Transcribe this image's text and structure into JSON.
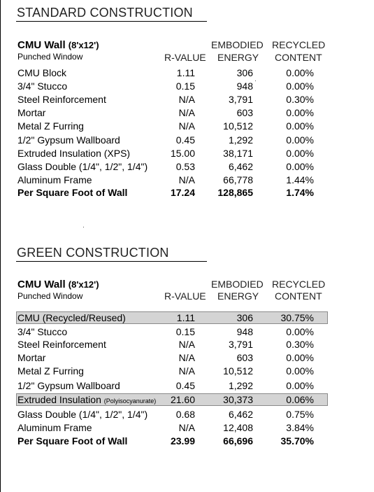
{
  "headers": {
    "r_value": "R-VALUE",
    "embodied_1": "EMBODIED",
    "embodied_2": "ENERGY",
    "recycled_1": "RECYCLED",
    "recycled_2": "CONTENT"
  },
  "standard": {
    "title": "STANDARD CONSTRUCTION",
    "wall_title": "CMU Wall",
    "wall_dims": "(8'x12')",
    "subtitle": "Punched Window",
    "rows": [
      {
        "name": "CMU Block",
        "r": "1.11",
        "ee": "306",
        "rc": "0.00%"
      },
      {
        "name": "3/4\" Stucco",
        "r": "0.15",
        "ee": "948",
        "rc": "0.00%"
      },
      {
        "name": "Steel Reinforcement",
        "r": "N/A",
        "ee": "3,791",
        "rc": "0.30%"
      },
      {
        "name": "Mortar",
        "r": "N/A",
        "ee": "603",
        "rc": "0.00%"
      },
      {
        "name": "Metal Z Furring",
        "r": "N/A",
        "ee": "10,512",
        "rc": "0.00%"
      },
      {
        "name": "1/2\" Gypsum Wallboard",
        "r": "0.45",
        "ee": "1,292",
        "rc": "0.00%"
      },
      {
        "name": "Extruded Insulation (XPS)",
        "r": "15.00",
        "ee": "38,171",
        "rc": "0.00%"
      },
      {
        "name": "Glass Double (1/4\", 1/2\", 1/4\")",
        "r": "0.53",
        "ee": "6,462",
        "rc": "0.00%"
      },
      {
        "name": "Aluminum Frame",
        "r": "N/A",
        "ee": "66,778",
        "rc": "1.44%"
      }
    ],
    "total": {
      "name": "Per Square Foot of Wall",
      "r": "17.24",
      "ee": "128,865",
      "rc": "1.74%"
    }
  },
  "green": {
    "title": "GREEN CONSTRUCTION",
    "wall_title": "CMU Wall",
    "wall_dims": "(8'x12')",
    "subtitle": "Punched Window",
    "rows": [
      {
        "name": "CMU (Recycled/Reused)",
        "r": "1.11",
        "ee": "306",
        "rc": "30.75%"
      },
      {
        "name": "3/4\" Stucco",
        "r": "0.15",
        "ee": "948",
        "rc": "0.00%"
      },
      {
        "name": "Steel Reinforcement",
        "r": "N/A",
        "ee": "3,791",
        "rc": "0.30%"
      },
      {
        "name": "Mortar",
        "r": "N/A",
        "ee": "603",
        "rc": "0.00%"
      },
      {
        "name": "Metal Z Furring",
        "r": "N/A",
        "ee": "10,512",
        "rc": "0.00%"
      },
      {
        "name": "1/2\" Gypsum Wallboard",
        "r": "0.45",
        "ee": "1,292",
        "rc": "0.00%"
      },
      {
        "name": "Extruded Insulation",
        "name_small": "(Polyisocyanurate)",
        "r": "21.60",
        "ee": "30,373",
        "rc": "0.06%"
      },
      {
        "name": "Glass Double (1/4\", 1/2\", 1/4\")",
        "r": "0.68",
        "ee": "6,462",
        "rc": "0.75%"
      },
      {
        "name": "Aluminum Frame",
        "r": "N/A",
        "ee": "12,408",
        "rc": "3.84%"
      }
    ],
    "total": {
      "name": "Per Square Foot of Wall",
      "r": "23.99",
      "ee": "66,696",
      "rc": "35.70%"
    }
  }
}
